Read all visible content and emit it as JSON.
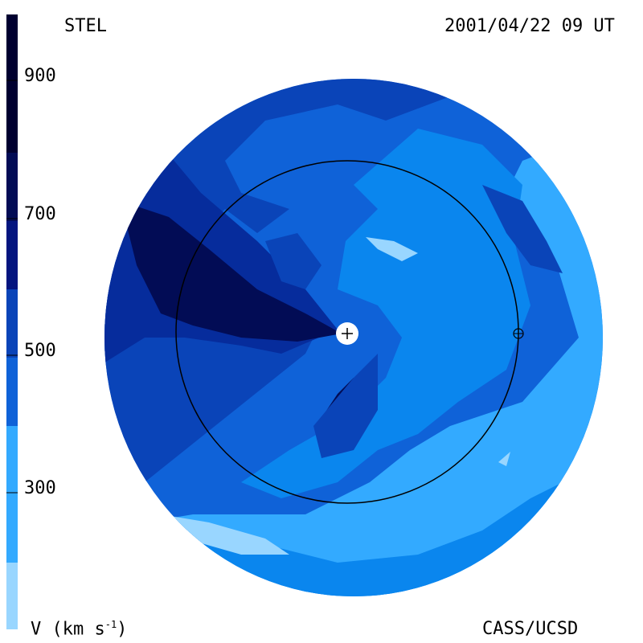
{
  "header": {
    "left_label": "STEL",
    "right_label": "2001/04/22 09 UT"
  },
  "footer": {
    "left_label": "V (km s",
    "left_superscript": "-1",
    "left_close": ")",
    "right_label": "CASS/UCSD"
  },
  "colorbar": {
    "tick_labels": [
      "900",
      "700",
      "500",
      "300"
    ],
    "ticks": [
      900,
      700,
      500,
      300
    ],
    "range": [
      200,
      1000
    ],
    "colors": [
      "#99d6ff",
      "#33aaff",
      "#0a86ee",
      "#0f62d8",
      "#0a44b8",
      "#062c9c",
      "#04157f",
      "#020c55",
      "#000030"
    ]
  },
  "map": {
    "center_symbol": "+",
    "earth_symbol": "earth-icon",
    "colors": {
      "outer_fast": "#0a3aa8",
      "medium": "#0f62d8",
      "slow": "#0a86ee",
      "slowest": "#33aaff",
      "very_slow": "#99d6ff",
      "fast": "#062c9c",
      "fastest": "#020c55",
      "orbit": "#000000"
    }
  }
}
